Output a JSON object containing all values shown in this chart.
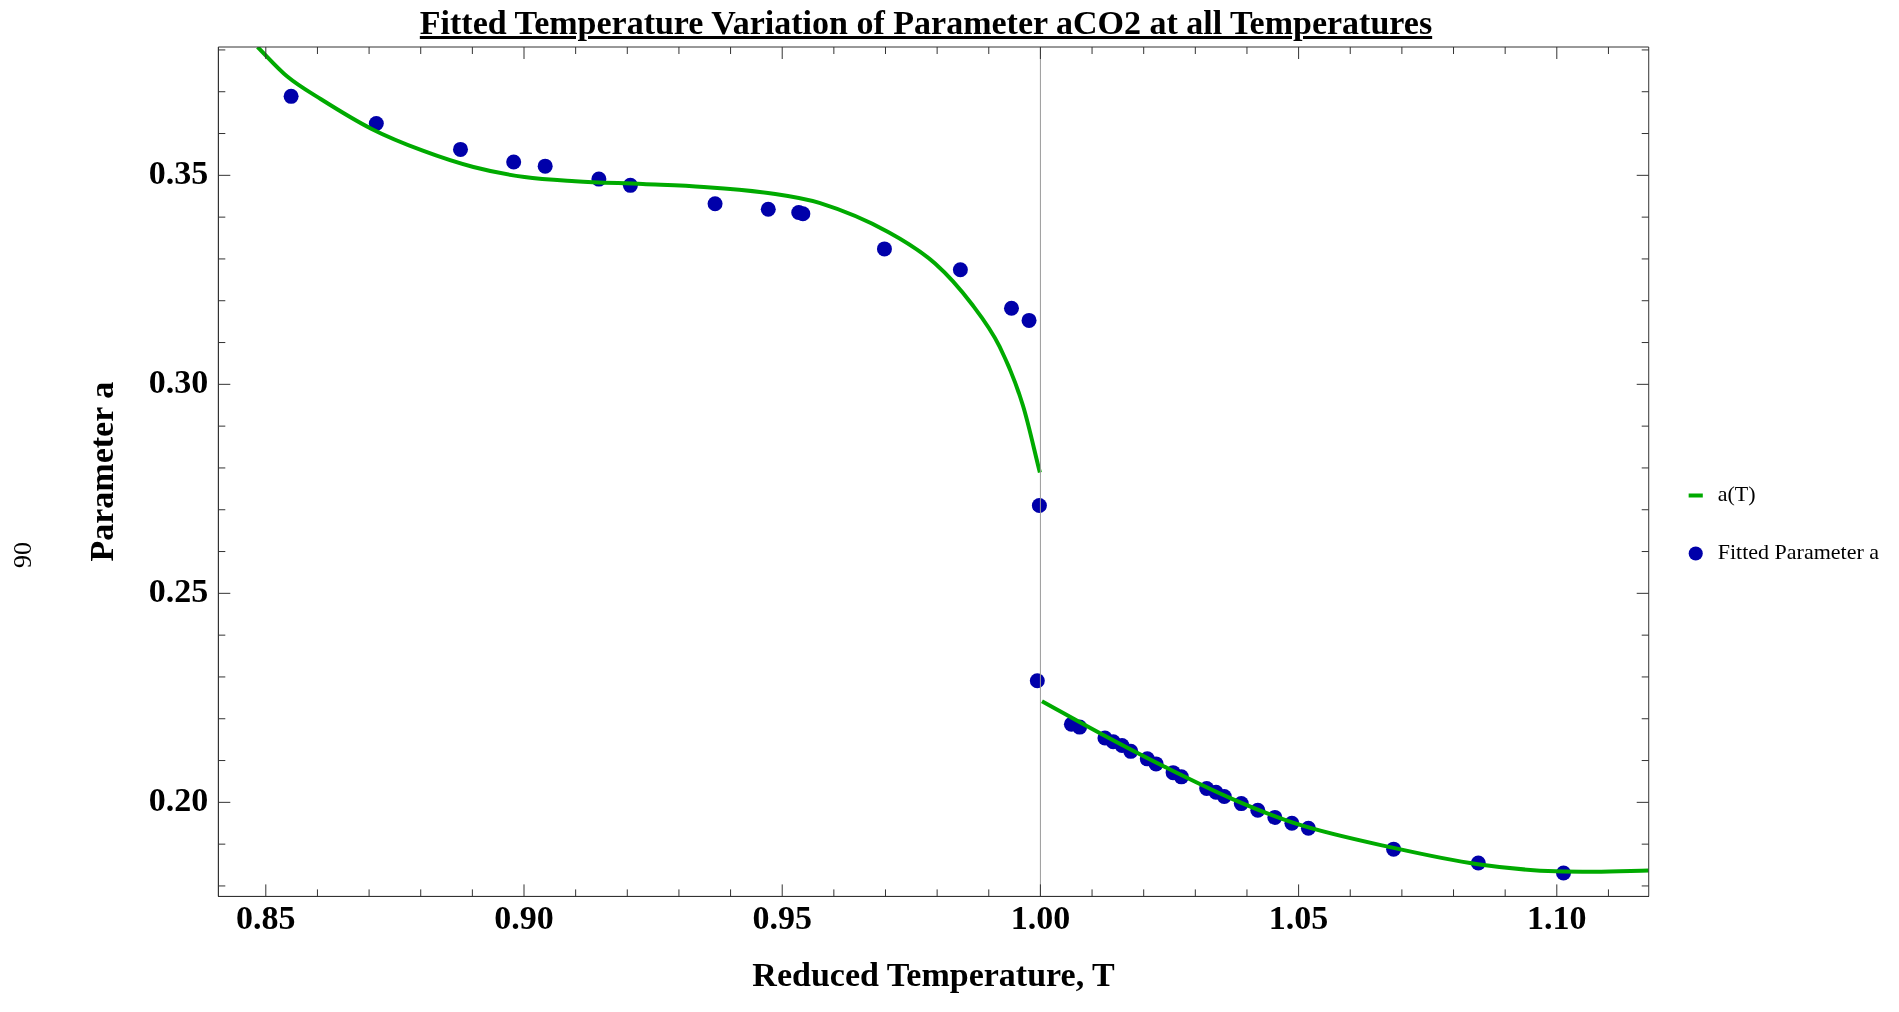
{
  "chart_data": {
    "type": "scatter",
    "title": "Fitted Temperature Variation of Parameter aCO2 at all Temperatures",
    "xlabel": "Reduced Temperature, T",
    "ylabel": "Parameter a",
    "annotations": [
      "90"
    ],
    "xlim": [
      0.8408,
      1.1178
    ],
    "ylim": [
      0.1775,
      0.3807
    ],
    "xticks": [
      0.85,
      {
        "value": 0.86,
        "label": null
      },
      {
        "value": 0.87,
        "label": null
      },
      {
        "value": 0.88,
        "label": null
      },
      {
        "value": 0.89,
        "label": null
      },
      {
        "value": 0.9,
        "label": "0.90"
      },
      {
        "value": 0.91,
        "label": null
      },
      {
        "value": 0.92,
        "label": null
      },
      {
        "value": 0.93,
        "label": null
      },
      {
        "value": 0.94,
        "label": null
      },
      0.95,
      {
        "value": 0.96,
        "label": null
      },
      {
        "value": 0.97,
        "label": null
      },
      {
        "value": 0.98,
        "label": null
      },
      {
        "value": 0.99,
        "label": null
      },
      {
        "value": 1,
        "label": "1.00"
      },
      {
        "value": 1.01,
        "label": null
      },
      {
        "value": 1.02,
        "label": null
      },
      {
        "value": 1.03,
        "label": null
      },
      {
        "value": 1.04,
        "label": null
      },
      1.05,
      {
        "value": 1.06,
        "label": null
      },
      {
        "value": 1.07,
        "label": null
      },
      {
        "value": 1.08,
        "label": null
      },
      {
        "value": 1.09,
        "label": null
      },
      {
        "value": 1.1,
        "label": "1.10"
      },
      {
        "value": 1.11,
        "label": null
      }
    ],
    "yticks": [
      {
        "value": 0.18,
        "label": null
      },
      {
        "value": 0.19,
        "label": null
      },
      {
        "value": 0.2,
        "label": "0.20"
      },
      {
        "value": 0.21,
        "label": null
      },
      {
        "value": 0.22,
        "label": null
      },
      {
        "value": 0.23,
        "label": null
      },
      {
        "value": 0.24,
        "label": null
      },
      0.25,
      {
        "value": 0.26,
        "label": null
      },
      {
        "value": 0.27,
        "label": null
      },
      {
        "value": 0.28,
        "label": null
      },
      {
        "value": 0.29,
        "label": null
      },
      {
        "value": 0.3,
        "label": "0.30"
      },
      {
        "value": 0.31,
        "label": null
      },
      {
        "value": 0.32,
        "label": null
      },
      {
        "value": 0.33,
        "label": null
      },
      {
        "value": 0.34,
        "label": null
      },
      0.35,
      {
        "value": 0.36,
        "label": null
      },
      {
        "value": 0.37,
        "label": null
      },
      {
        "value": 0.38,
        "label": null
      }
    ],
    "grid": false,
    "legend": "right",
    "ref_lines": [
      {
        "axis": "x",
        "value": 1.0,
        "color": "#999999"
      }
    ],
    "series": [
      {
        "type": "line",
        "name": "a(T)",
        "color": "#00aa00",
        "marker": "none",
        "x": [
          0.8484,
          0.8541,
          0.8607,
          0.8705,
          0.8804,
          0.8902,
          0.9001,
          0.9099,
          0.923,
          0.9348,
          0.9483,
          0.9572,
          0.9706,
          0.9796,
          0.9867,
          0.9921,
          0.9966,
          0.9999,
          null,
          1.0003,
          1.0119,
          1.0244,
          1.037,
          1.0495,
          1.0684,
          1.0847,
          1.0998,
          1.1073,
          1.1178
        ],
        "values": [
          0.3807,
          0.3737,
          0.3682,
          0.3611,
          0.3559,
          0.352,
          0.3496,
          0.3486,
          0.3479,
          0.3472,
          0.3456,
          0.3434,
          0.3364,
          0.3289,
          0.3192,
          0.309,
          0.295,
          0.2789,
          null,
          0.2242,
          0.2163,
          0.2083,
          0.2009,
          0.1949,
          0.1891,
          0.1852,
          0.1835,
          0.1834,
          0.1837
        ]
      },
      {
        "type": "scatter",
        "name": "Fitted Parameter a",
        "color": "#0000aa",
        "marker": "circle",
        "x": [
          0.8549,
          0.8714,
          0.8877,
          0.898,
          0.9041,
          0.9145,
          0.9206,
          0.937,
          0.9473,
          0.9532,
          0.954,
          0.9698,
          0.9845,
          0.9944,
          0.9978,
          0.9998,
          0.9994,
          1.006,
          1.0076,
          1.0125,
          1.0141,
          1.0158,
          1.0175,
          1.0207,
          1.0224,
          1.0257,
          1.0273,
          1.0322,
          1.034,
          1.0356,
          1.0389,
          1.0421,
          1.0454,
          1.0487,
          1.0519,
          1.0684,
          1.0848,
          1.1013
        ],
        "values": [
          0.3689,
          0.3624,
          0.3562,
          0.3532,
          0.3522,
          0.3491,
          0.3476,
          0.3432,
          0.3419,
          0.3411,
          0.3408,
          0.3324,
          0.3274,
          0.3182,
          0.3153,
          0.271,
          0.2291,
          0.2187,
          0.218,
          0.2154,
          0.2145,
          0.2136,
          0.2122,
          0.2104,
          0.2092,
          0.2071,
          0.2061,
          0.2033,
          0.2024,
          0.2014,
          0.1997,
          0.1981,
          0.1964,
          0.195,
          0.1938,
          0.1888,
          0.1855,
          0.1831
        ]
      }
    ]
  }
}
